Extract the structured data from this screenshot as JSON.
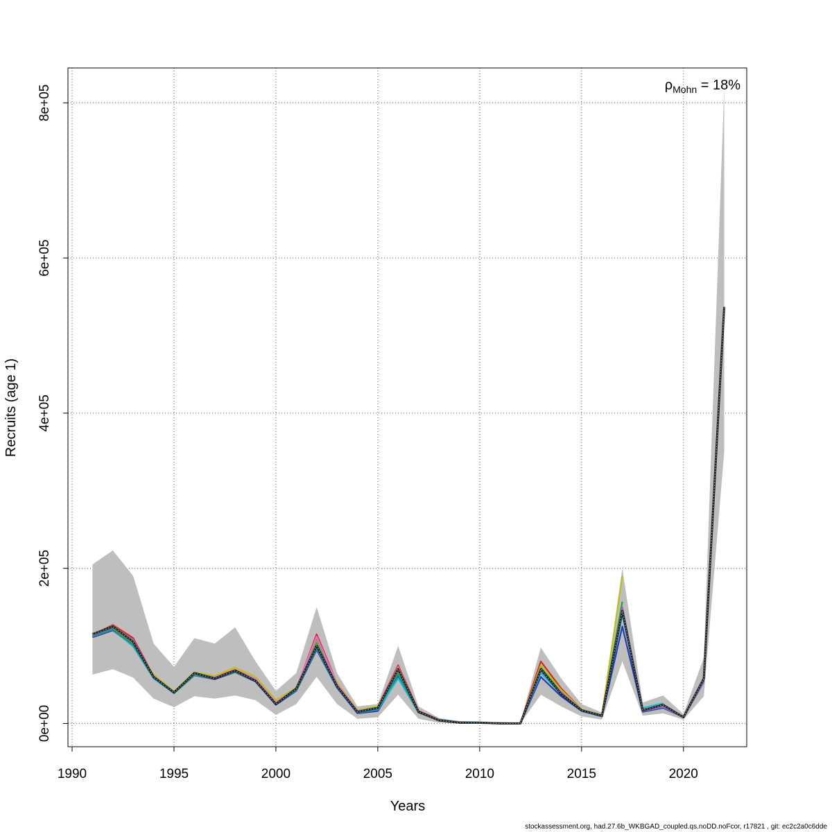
{
  "chart_data": {
    "type": "line",
    "title": "",
    "xlabel": "Years",
    "ylabel": "Recruits (age 1)",
    "xlim": [
      1990,
      2023
    ],
    "ylim": [
      -30000,
      845000
    ],
    "x_ticks": [
      1990,
      1995,
      2000,
      2005,
      2010,
      2015,
      2020
    ],
    "x_tick_labels": [
      "1990",
      "1995",
      "2000",
      "2005",
      "2010",
      "2015",
      "2020"
    ],
    "y_ticks": [
      0,
      200000,
      400000,
      600000,
      800000
    ],
    "y_tick_labels": [
      "0e+00",
      "2e+05",
      "4e+05",
      "6e+05",
      "8e+05"
    ],
    "grid": true,
    "grid_style": "dotted",
    "band_color": "#bebebe",
    "annotation": {
      "symbol": "ρ",
      "subscript": "Mohn",
      "text": " = 18%"
    },
    "footer": "stockassessment.org, had.27.6b_WKBGAD_coupled.qs.noDD.noFcor, r17821 , git: ec2c2a0c6dde",
    "confidence_band": {
      "x": [
        1991,
        1992,
        1993,
        1994,
        1995,
        1996,
        1997,
        1998,
        1999,
        2000,
        2001,
        2002,
        2003,
        2004,
        2005,
        2006,
        2007,
        2008,
        2009,
        2010,
        2011,
        2012,
        2013,
        2014,
        2015,
        2016,
        2017,
        2018,
        2019,
        2020,
        2021,
        2022
      ],
      "upper": [
        205000,
        223000,
        190000,
        103000,
        73000,
        110000,
        103000,
        124000,
        80000,
        42000,
        65000,
        150000,
        65000,
        22000,
        25000,
        100000,
        22000,
        7000,
        3000,
        2000,
        1000,
        1000,
        98000,
        58000,
        25000,
        14000,
        200000,
        27000,
        36000,
        12000,
        85000,
        820000
      ],
      "lower": [
        63000,
        70000,
        59000,
        32000,
        21000,
        35000,
        32000,
        36000,
        30000,
        11000,
        25000,
        60000,
        25000,
        6000,
        8000,
        37000,
        6000,
        1000,
        0,
        0,
        0,
        0,
        37000,
        22000,
        9000,
        5000,
        80000,
        10000,
        13000,
        5000,
        35000,
        350000
      ]
    },
    "series": [
      {
        "color": "#1b1b1b",
        "values": [
          115000,
          125000,
          105000,
          60000,
          40000,
          65000,
          58000,
          68000,
          55000,
          25000,
          45000,
          100000,
          48000,
          15000,
          20000,
          70000,
          15000,
          4000,
          1000,
          1000,
          0,
          0,
          70000,
          38000,
          17000,
          10000,
          145000,
          17000,
          24000,
          8000,
          58000,
          537000
        ],
        "dashed": true,
        "width": 3
      },
      {
        "color": "#d62728",
        "values": [
          114000,
          127000,
          110000,
          61000,
          40000,
          64000,
          60000,
          69000,
          57000,
          27000,
          44000,
          115000,
          52000,
          16000,
          21000,
          75000,
          16000,
          5000,
          1500,
          1200,
          0,
          0,
          80000,
          45000,
          18000
        ]
      },
      {
        "color": "#2ca02c",
        "values": [
          113000,
          122000,
          102000,
          59000,
          40000,
          63000,
          59000,
          67000,
          56000,
          26000,
          43000,
          105000,
          50000,
          15000,
          20000,
          66000,
          14000,
          4500,
          1500,
          1200,
          0,
          0,
          72000,
          42000,
          17500,
          10000,
          157000
        ]
      },
      {
        "color": "#1f3fb4",
        "values": [
          111000,
          120000,
          100000,
          58000,
          39000,
          62000,
          57000,
          66000,
          54000,
          24000,
          42000,
          95000,
          46000,
          13000,
          16000,
          60000,
          14000,
          4000,
          1200,
          1000,
          0,
          0,
          60000,
          35000,
          16000,
          9000,
          125000,
          15000,
          20000,
          8000,
          55000
        ]
      },
      {
        "color": "#17becf",
        "values": [
          112000,
          121000,
          99000,
          58000,
          39000,
          63000,
          58000,
          67000,
          55000,
          25000,
          43000,
          97000,
          47000,
          14000,
          18000,
          58000,
          14000,
          5000,
          2000,
          1500,
          0,
          0,
          65000,
          38000,
          16500,
          9500,
          140000,
          20000,
          26000
        ]
      },
      {
        "color": "#bcbd22",
        "values": [
          116000,
          124000,
          104000,
          63000,
          41000,
          66000,
          61000,
          72000,
          60000,
          30000,
          46000,
          108000,
          53000,
          17000,
          22000,
          68000,
          15000,
          4500,
          1500,
          1000,
          0,
          0,
          75000,
          43000,
          18000,
          11000,
          190000
        ]
      },
      {
        "color": "#9467bd",
        "values": [
          113000,
          124000,
          108000,
          60000,
          40000,
          64000,
          59000,
          68000,
          56000,
          26000,
          44000,
          110000,
          50000,
          15000,
          19000,
          72000,
          15000,
          4500,
          1500,
          1000,
          500,
          0,
          68000,
          40000,
          17000,
          10000,
          150000,
          16000,
          21000,
          8000,
          53000
        ]
      },
      {
        "color": "#e377c2",
        "values": [
          114000,
          126000,
          106000,
          61000,
          40000,
          64000,
          59000,
          68000,
          57000,
          27000,
          45000,
          112000,
          51000,
          16000,
          20000,
          73000,
          15000,
          4500,
          1500,
          1000,
          500,
          0
        ]
      },
      {
        "color": "#228b8b",
        "values": [
          112000,
          121000,
          101000,
          59000,
          39000,
          62000,
          58000,
          66000,
          55000,
          25000,
          43000,
          98000,
          48000,
          14000,
          19000,
          63000,
          14000,
          4000,
          1200,
          1000,
          0
        ]
      }
    ]
  }
}
